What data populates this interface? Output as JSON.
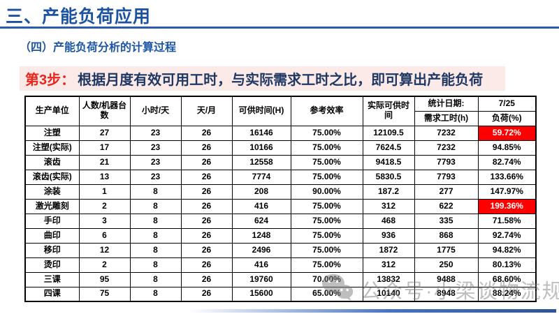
{
  "slide": {
    "title": "三、产能负荷应用",
    "subtitle": "（四）产能负荷分析的计算过程",
    "step_label": "第3步：",
    "step_text": "根据月度有效可用工时，与实际需求工时之比，即可算出产能负荷"
  },
  "table": {
    "header": {
      "unit": "生产单位",
      "count": "人数/机器台数",
      "hours_per_day": "小时/天",
      "days_per_month": "天/月",
      "available": "可供时间(H)",
      "efficiency": "参考效率",
      "actual_available": "实际可供时间",
      "stat_date_label": "统计日期:",
      "stat_date_value": "7/25",
      "demand_label": "需求工时(h)",
      "load_label": "负荷(%)"
    },
    "rows": [
      {
        "unit": "注塑",
        "count": "27",
        "hours_per_day": "23",
        "days_per_month": "26",
        "available": "16146",
        "efficiency": "75.00%",
        "actual_available": "12109.5",
        "demand": "7232",
        "load": "59.72%",
        "load_red": true
      },
      {
        "unit": "注塑(实际)",
        "count": "17",
        "hours_per_day": "23",
        "days_per_month": "26",
        "available": "10166",
        "efficiency": "75.00%",
        "actual_available": "7624.5",
        "demand": "7232",
        "load": "94.85%",
        "load_red": false
      },
      {
        "unit": "滚齿",
        "count": "21",
        "hours_per_day": "23",
        "days_per_month": "26",
        "available": "12558",
        "efficiency": "75.00%",
        "actual_available": "9418.5",
        "demand": "7793",
        "load": "82.74%",
        "load_red": false
      },
      {
        "unit": "滚齿(实际)",
        "count": "13",
        "hours_per_day": "23",
        "days_per_month": "26",
        "available": "7774",
        "efficiency": "75.00%",
        "actual_available": "5830.5",
        "demand": "7793",
        "load": "133.66%",
        "load_red": false
      },
      {
        "unit": "涂装",
        "count": "1",
        "hours_per_day": "8",
        "days_per_month": "26",
        "available": "208",
        "efficiency": "90.00%",
        "actual_available": "187.2",
        "demand": "277",
        "load": "147.97%",
        "load_red": false
      },
      {
        "unit": "激光雕刻",
        "count": "2",
        "hours_per_day": "8",
        "days_per_month": "26",
        "available": "416",
        "efficiency": "75.00%",
        "actual_available": "312",
        "demand": "622",
        "load": "199.36%",
        "load_red": true
      },
      {
        "unit": "手印",
        "count": "3",
        "hours_per_day": "8",
        "days_per_month": "26",
        "available": "624",
        "efficiency": "75.00%",
        "actual_available": "468",
        "demand": "335",
        "load": "71.58%",
        "load_red": false
      },
      {
        "unit": "曲印",
        "count": "6",
        "hours_per_day": "8",
        "days_per_month": "26",
        "available": "1248",
        "efficiency": "75.00%",
        "actual_available": "936",
        "demand": "868",
        "load": "92.74%",
        "load_red": false
      },
      {
        "unit": "移印",
        "count": "12",
        "hours_per_day": "8",
        "days_per_month": "26",
        "available": "2496",
        "efficiency": "75.00%",
        "actual_available": "1872",
        "demand": "1775",
        "load": "94.82%",
        "load_red": false
      },
      {
        "unit": "烫印",
        "count": "2",
        "hours_per_day": "8",
        "days_per_month": "26",
        "available": "416",
        "efficiency": "75.00%",
        "actual_available": "312",
        "demand": "250",
        "load": "80.13%",
        "load_red": false
      },
      {
        "unit": "三课",
        "count": "95",
        "hours_per_day": "8",
        "days_per_month": "26",
        "available": "19760",
        "efficiency": "70.00%",
        "actual_available": "13832",
        "demand": "9488",
        "load": "68.60%",
        "load_red": false
      },
      {
        "unit": "四课",
        "count": "75",
        "hours_per_day": "8",
        "days_per_month": "26",
        "available": "15600",
        "efficiency": "65.00%",
        "actual_available": "10140",
        "demand": "8948",
        "load": "88.24%",
        "load_red": false
      }
    ]
  },
  "watermark": {
    "text": "公众号·小梁谈物流规划",
    "icon": "wechat-icon"
  },
  "colors": {
    "title_blue": "#1d52a3",
    "divider_blue": "#2a5da8",
    "banner_pink": "#fbeae8",
    "step_red": "#e8261c",
    "banner_navy": "#1f3864",
    "highlight_red": "#ff0000",
    "accent_bar_blue": "#4472c4"
  }
}
